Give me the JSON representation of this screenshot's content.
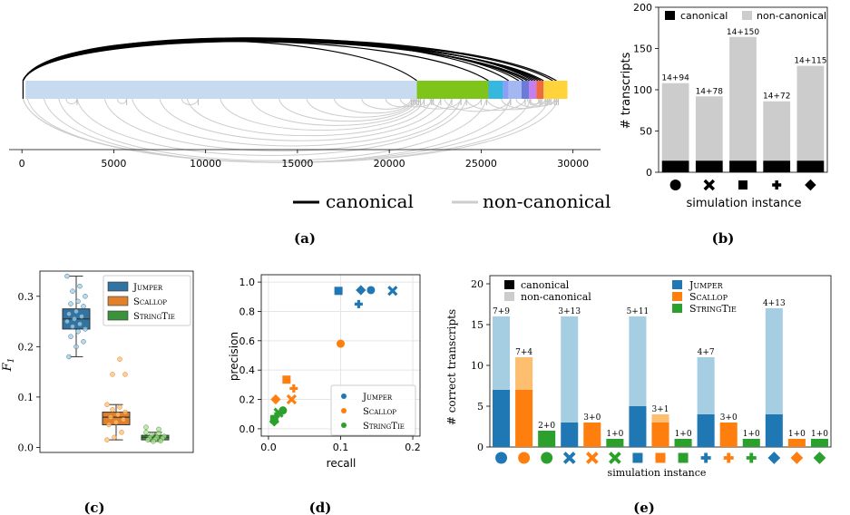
{
  "panel_labels": {
    "a": "(a)",
    "b": "(b)",
    "c": "(c)",
    "d": "(d)",
    "e": "(e)"
  },
  "colors": {
    "canonical": "#000000",
    "non_canonical": "#cccccc",
    "jumper": "#1f77b4",
    "scallop": "#ff7f0e",
    "stringtie": "#2ca02c",
    "jumper_light": "#a6cee3",
    "scallop_light": "#fdbf6f",
    "stringtie_light": "#b2df8a"
  },
  "chart_data": [
    {
      "id": "a",
      "type": "arc",
      "legend": [
        "canonical",
        "non-canonical"
      ],
      "xticks": [
        0,
        5000,
        10000,
        15000,
        20000,
        25000,
        30000
      ],
      "xlim": [
        -700,
        31500
      ],
      "segments": [
        {
          "start": 200,
          "end": 21500,
          "color": "#c6dbef"
        },
        {
          "start": 21500,
          "end": 25400,
          "color": "#7fc41a"
        },
        {
          "start": 25400,
          "end": 26200,
          "color": "#36b7e0"
        },
        {
          "start": 26200,
          "end": 26500,
          "color": "#8c9ef5"
        },
        {
          "start": 26500,
          "end": 27200,
          "color": "#a3b8f0"
        },
        {
          "start": 27200,
          "end": 27600,
          "color": "#6a7bd8"
        },
        {
          "start": 27600,
          "end": 28000,
          "color": "#c27ef2"
        },
        {
          "start": 28000,
          "end": 28400,
          "color": "#ee6b3f"
        },
        {
          "start": 28400,
          "end": 29700,
          "color": "#ffd43b"
        }
      ],
      "canonical_junctions": [
        {
          "from": 60,
          "to": 28400
        },
        {
          "from": 60,
          "to": 28250
        },
        {
          "from": 60,
          "to": 28100
        },
        {
          "from": 60,
          "to": 27950
        },
        {
          "from": 60,
          "to": 27800
        },
        {
          "from": 60,
          "to": 27650
        },
        {
          "from": 60,
          "to": 27500
        },
        {
          "from": 60,
          "to": 27300
        },
        {
          "from": 60,
          "to": 27050
        },
        {
          "from": 60,
          "to": 26500
        },
        {
          "from": 60,
          "to": 25400
        },
        {
          "from": 60,
          "to": 21500
        },
        {
          "from": 60,
          "to": 28900
        },
        {
          "from": 60,
          "to": 29100
        }
      ],
      "non_canonical_junctions": [
        {
          "from": 60,
          "to": 29200
        },
        {
          "from": 60,
          "to": 28700
        },
        {
          "from": 300,
          "to": 27700
        },
        {
          "from": 1200,
          "to": 26600
        },
        {
          "from": 2000,
          "to": 25300
        },
        {
          "from": 3000,
          "to": 24200
        },
        {
          "from": 4500,
          "to": 23900
        },
        {
          "from": 6000,
          "to": 23400
        },
        {
          "from": 7500,
          "to": 22800
        },
        {
          "from": 9000,
          "to": 22300
        },
        {
          "from": 10800,
          "to": 21900
        },
        {
          "from": 12500,
          "to": 21700
        },
        {
          "from": 14000,
          "to": 21500
        },
        {
          "from": 15500,
          "to": 21400
        },
        {
          "from": 17000,
          "to": 21300
        },
        {
          "from": 18500,
          "to": 21200
        },
        {
          "from": 19800,
          "to": 21600
        },
        {
          "from": 20600,
          "to": 22400
        },
        {
          "from": 21300,
          "to": 23900
        },
        {
          "from": 22200,
          "to": 25000
        },
        {
          "from": 23000,
          "to": 26600
        },
        {
          "from": 24200,
          "to": 27400
        },
        {
          "from": 25300,
          "to": 28200
        },
        {
          "from": 26100,
          "to": 28500
        },
        {
          "from": 26900,
          "to": 28800
        },
        {
          "from": 27500,
          "to": 29000
        },
        {
          "from": 2400,
          "to": 3000
        },
        {
          "from": 5200,
          "to": 5700
        },
        {
          "from": 8700,
          "to": 9600
        },
        {
          "from": 27600,
          "to": 28300
        },
        {
          "from": 28100,
          "to": 28600
        },
        {
          "from": 28600,
          "to": 29100
        }
      ]
    },
    {
      "id": "b",
      "type": "bar",
      "ylabel": "# transcripts",
      "xlabel": "simulation instance",
      "ylim": [
        0,
        200
      ],
      "yticks": [
        0,
        50,
        100,
        150,
        200
      ],
      "legend": [
        "canonical",
        "non-canonical"
      ],
      "categories": [
        "●",
        "✖",
        "■",
        "✚",
        "◆"
      ],
      "series": [
        {
          "name": "canonical",
          "values": [
            14,
            14,
            14,
            14,
            14
          ]
        },
        {
          "name": "non-canonical",
          "values": [
            94,
            78,
            150,
            72,
            115
          ]
        }
      ],
      "data_labels": [
        "14+94",
        "14+78",
        "14+150",
        "14+72",
        "14+115"
      ]
    },
    {
      "id": "c",
      "type": "box",
      "ylabel": "F",
      "ylabel_sub": "1",
      "ylim": [
        -0.01,
        0.35
      ],
      "yticks": [
        0.0,
        0.1,
        0.2,
        0.3
      ],
      "legend": [
        "Jumper",
        "Scallop",
        "StringTie"
      ],
      "boxes": [
        {
          "name": "Jumper",
          "whisker_low": 0.18,
          "q1": 0.235,
          "median": 0.255,
          "q3": 0.275,
          "whisker_high": 0.34,
          "points": [
            0.34,
            0.32,
            0.31,
            0.3,
            0.29,
            0.285,
            0.28,
            0.27,
            0.265,
            0.26,
            0.255,
            0.25,
            0.245,
            0.24,
            0.235,
            0.23,
            0.22,
            0.21,
            0.2,
            0.18
          ]
        },
        {
          "name": "Scallop",
          "whisker_low": 0.015,
          "q1": 0.045,
          "median": 0.06,
          "q3": 0.07,
          "whisker_high": 0.085,
          "outliers": [
            0.175,
            0.145,
            0.145
          ],
          "points": [
            0.085,
            0.08,
            0.075,
            0.07,
            0.065,
            0.06,
            0.055,
            0.05,
            0.045,
            0.03,
            0.02,
            0.015
          ]
        },
        {
          "name": "StringTie",
          "whisker_low": 0.012,
          "q1": 0.015,
          "median": 0.02,
          "q3": 0.024,
          "whisker_high": 0.03,
          "outliers": [
            0.04,
            0.036
          ],
          "points": [
            0.03,
            0.028,
            0.025,
            0.022,
            0.02,
            0.019,
            0.018,
            0.016,
            0.015,
            0.013,
            0.012
          ]
        }
      ]
    },
    {
      "id": "d",
      "type": "scatter",
      "xlabel": "recall",
      "ylabel": "precision",
      "xlim": [
        -0.01,
        0.21
      ],
      "ylim": [
        -0.05,
        1.05
      ],
      "xticks": [
        0.0,
        0.1,
        0.2
      ],
      "yticks": [
        0.0,
        0.2,
        0.4,
        0.6,
        0.8,
        1.0
      ],
      "legend": [
        "Jumper",
        "Scallop",
        "StringTie"
      ],
      "points": [
        {
          "series": "Jumper",
          "marker": "square",
          "x": 0.097,
          "y": 0.94
        },
        {
          "series": "Jumper",
          "marker": "diamond",
          "x": 0.128,
          "y": 0.945
        },
        {
          "series": "Jumper",
          "marker": "circle",
          "x": 0.142,
          "y": 0.945
        },
        {
          "series": "Jumper",
          "marker": "x",
          "x": 0.172,
          "y": 0.94
        },
        {
          "series": "Jumper",
          "marker": "plus",
          "x": 0.125,
          "y": 0.85
        },
        {
          "series": "Scallop",
          "marker": "circle",
          "x": 0.1,
          "y": 0.58
        },
        {
          "series": "Scallop",
          "marker": "square",
          "x": 0.025,
          "y": 0.335
        },
        {
          "series": "Scallop",
          "marker": "plus",
          "x": 0.035,
          "y": 0.275
        },
        {
          "series": "Scallop",
          "marker": "x",
          "x": 0.032,
          "y": 0.2
        },
        {
          "series": "Scallop",
          "marker": "diamond",
          "x": 0.01,
          "y": 0.2
        },
        {
          "series": "StringTie",
          "marker": "circle",
          "x": 0.02,
          "y": 0.125
        },
        {
          "series": "StringTie",
          "marker": "x",
          "x": 0.014,
          "y": 0.11
        },
        {
          "series": "StringTie",
          "marker": "plus",
          "x": 0.01,
          "y": 0.085
        },
        {
          "series": "StringTie",
          "marker": "square",
          "x": 0.008,
          "y": 0.065
        },
        {
          "series": "StringTie",
          "marker": "diamond",
          "x": 0.008,
          "y": 0.05
        }
      ]
    },
    {
      "id": "e",
      "type": "bar",
      "ylabel": "# correct transcripts",
      "xlabel": "simulation instance",
      "ylim": [
        0,
        21
      ],
      "yticks": [
        0,
        5,
        10,
        15,
        20
      ],
      "legend_types": [
        "canonical",
        "non-canonical"
      ],
      "legend_methods": [
        "Jumper",
        "Scallop",
        "StringTie"
      ],
      "bars": [
        {
          "marker": "circle",
          "method": "Jumper",
          "canonical": 7,
          "non_canonical": 9,
          "label": "7+9"
        },
        {
          "marker": "circle",
          "method": "Scallop",
          "canonical": 7,
          "non_canonical": 4,
          "label": "7+4"
        },
        {
          "marker": "circle",
          "method": "StringTie",
          "canonical": 2,
          "non_canonical": 0,
          "label": "2+0"
        },
        {
          "marker": "x",
          "method": "Jumper",
          "canonical": 3,
          "non_canonical": 13,
          "label": "3+13"
        },
        {
          "marker": "x",
          "method": "Scallop",
          "canonical": 3,
          "non_canonical": 0,
          "label": "3+0"
        },
        {
          "marker": "x",
          "method": "StringTie",
          "canonical": 1,
          "non_canonical": 0,
          "label": "1+0"
        },
        {
          "marker": "square",
          "method": "Jumper",
          "canonical": 5,
          "non_canonical": 11,
          "label": "5+11"
        },
        {
          "marker": "square",
          "method": "Scallop",
          "canonical": 3,
          "non_canonical": 1,
          "label": "3+1"
        },
        {
          "marker": "square",
          "method": "StringTie",
          "canonical": 1,
          "non_canonical": 0,
          "label": "1+0"
        },
        {
          "marker": "plus",
          "method": "Jumper",
          "canonical": 4,
          "non_canonical": 7,
          "label": "4+7"
        },
        {
          "marker": "plus",
          "method": "Scallop",
          "canonical": 3,
          "non_canonical": 0,
          "label": "3+0"
        },
        {
          "marker": "plus",
          "method": "StringTie",
          "canonical": 1,
          "non_canonical": 0,
          "label": "1+0"
        },
        {
          "marker": "diamond",
          "method": "Jumper",
          "canonical": 4,
          "non_canonical": 13,
          "label": "4+13"
        },
        {
          "marker": "diamond",
          "method": "Scallop",
          "canonical": 1,
          "non_canonical": 0,
          "label": "1+0"
        },
        {
          "marker": "diamond",
          "method": "StringTie",
          "canonical": 1,
          "non_canonical": 0,
          "label": "1+0"
        }
      ]
    }
  ]
}
